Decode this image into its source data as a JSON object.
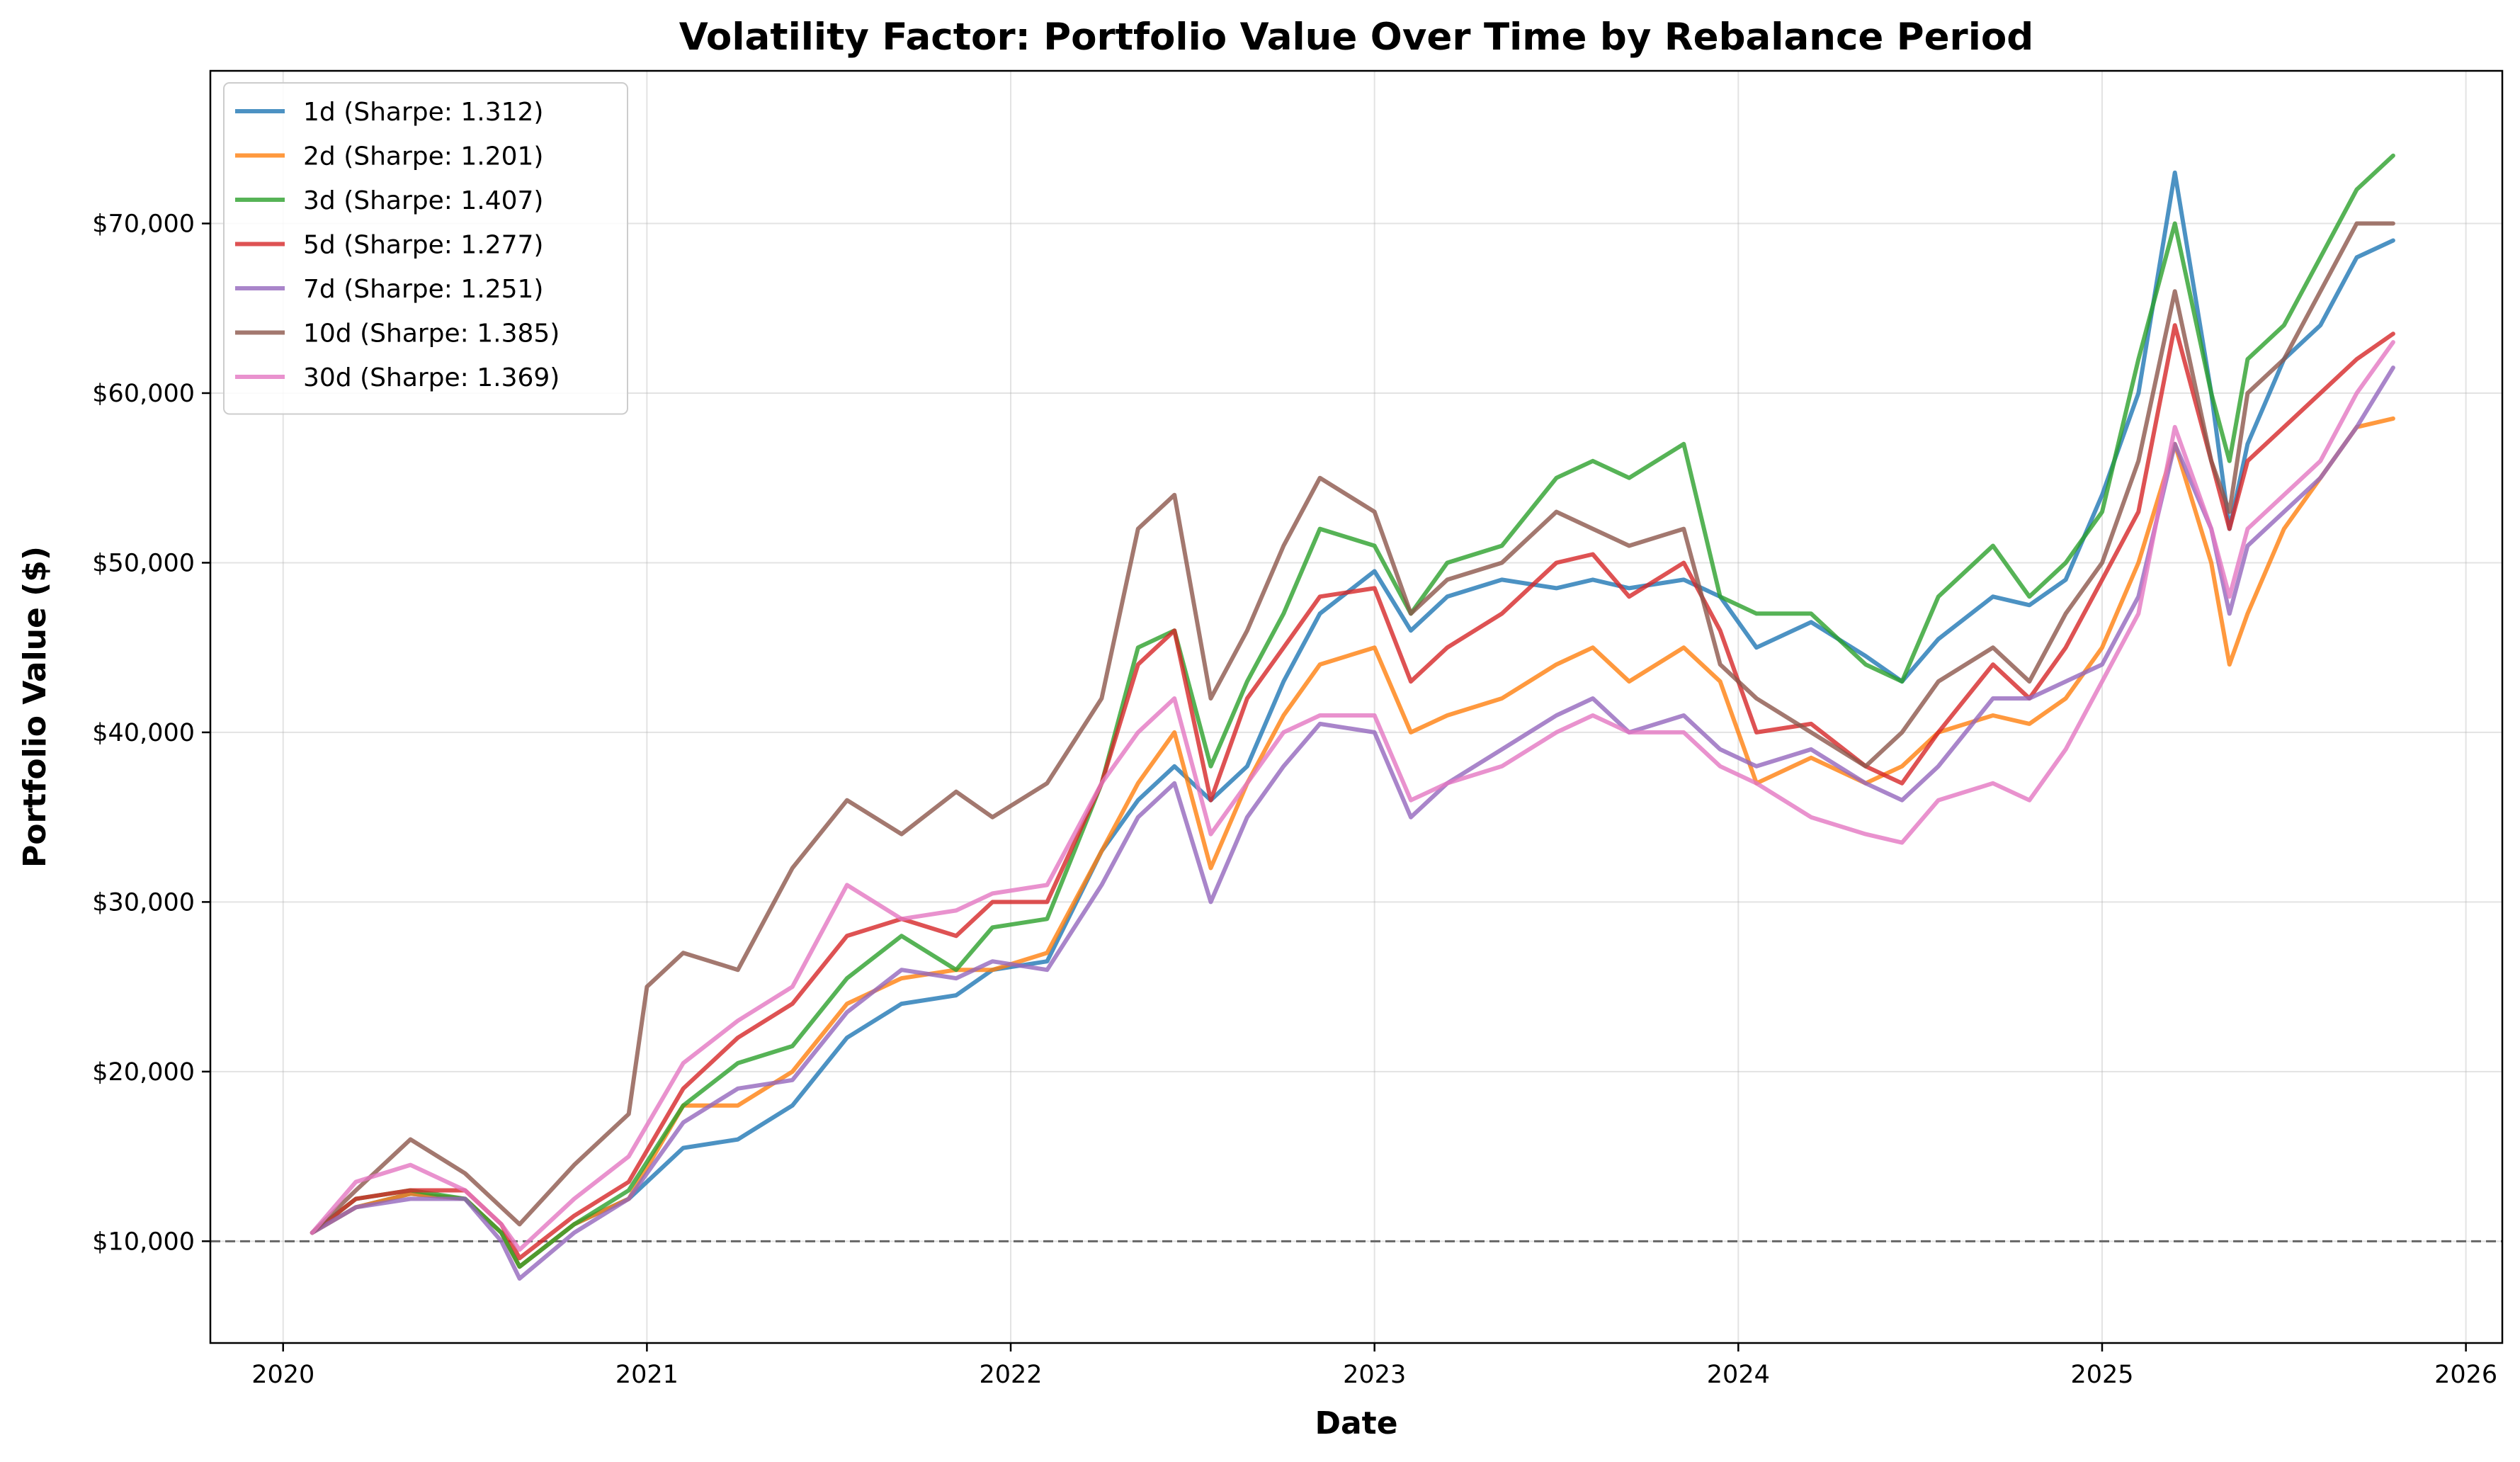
{
  "chart_data": {
    "type": "line",
    "title": "Volatility Factor: Portfolio Value Over Time by Rebalance Period",
    "xlabel": "Date",
    "ylabel": "Portfolio Value ($)",
    "xlim": [
      2019.8,
      2026.1
    ],
    "ylim": [
      4000,
      79000
    ],
    "x_ticks": [
      2020,
      2021,
      2022,
      2023,
      2024,
      2025,
      2026
    ],
    "x_tick_labels": [
      "2020",
      "2021",
      "2022",
      "2023",
      "2024",
      "2025",
      "2026"
    ],
    "y_ticks": [
      10000,
      20000,
      30000,
      40000,
      50000,
      60000,
      70000
    ],
    "y_tick_labels": [
      "$10,000",
      "$20,000",
      "$30,000",
      "$40,000",
      "$50,000",
      "$60,000",
      "$70,000"
    ],
    "grid": true,
    "legend_position": "top-left",
    "reference_line": {
      "y": 10000,
      "style": "dashed",
      "color": "#666666"
    },
    "series": [
      {
        "name": "1d (Sharpe: 1.312)",
        "color": "#1f77b4",
        "x": [
          2020.08,
          2020.2,
          2020.35,
          2020.5,
          2020.6,
          2020.65,
          2020.8,
          2020.95,
          2021.1,
          2021.25,
          2021.4,
          2021.55,
          2021.7,
          2021.85,
          2021.95,
          2022.1,
          2022.25,
          2022.35,
          2022.45,
          2022.55,
          2022.65,
          2022.75,
          2022.85,
          2023.0,
          2023.1,
          2023.2,
          2023.35,
          2023.5,
          2023.6,
          2023.7,
          2023.85,
          2023.95,
          2024.05,
          2024.2,
          2024.35,
          2024.45,
          2024.55,
          2024.7,
          2024.8,
          2024.9,
          2025.0,
          2025.1,
          2025.2,
          2025.3,
          2025.35,
          2025.4,
          2025.5,
          2025.6,
          2025.7,
          2025.8
        ],
        "values": [
          10500,
          12000,
          12800,
          12500,
          10500,
          8500,
          11000,
          12500,
          15500,
          16000,
          18000,
          22000,
          24000,
          24500,
          26000,
          26500,
          33000,
          36000,
          38000,
          36000,
          38000,
          43000,
          47000,
          49500,
          46000,
          48000,
          49000,
          48500,
          49000,
          48500,
          49000,
          48000,
          45000,
          46500,
          44500,
          43000,
          45500,
          48000,
          47500,
          49000,
          54000,
          60000,
          73000,
          60000,
          52000,
          57000,
          62000,
          64000,
          68000,
          69000
        ]
      },
      {
        "name": "2d (Sharpe: 1.201)",
        "color": "#ff7f0e",
        "x": [
          2020.08,
          2020.2,
          2020.35,
          2020.5,
          2020.6,
          2020.65,
          2020.8,
          2020.95,
          2021.1,
          2021.25,
          2021.4,
          2021.55,
          2021.7,
          2021.85,
          2021.95,
          2022.1,
          2022.25,
          2022.35,
          2022.45,
          2022.55,
          2022.65,
          2022.75,
          2022.85,
          2023.0,
          2023.1,
          2023.2,
          2023.35,
          2023.5,
          2023.6,
          2023.7,
          2023.85,
          2023.95,
          2024.05,
          2024.2,
          2024.35,
          2024.45,
          2024.55,
          2024.7,
          2024.8,
          2024.9,
          2025.0,
          2025.1,
          2025.2,
          2025.3,
          2025.35,
          2025.4,
          2025.5,
          2025.6,
          2025.7,
          2025.8
        ],
        "values": [
          10500,
          12000,
          12800,
          12500,
          10500,
          8500,
          11000,
          12500,
          18000,
          18000,
          20000,
          24000,
          25500,
          26000,
          26000,
          27000,
          33000,
          37000,
          40000,
          32000,
          37000,
          41000,
          44000,
          45000,
          40000,
          41000,
          42000,
          44000,
          45000,
          43000,
          45000,
          43000,
          37000,
          38500,
          37000,
          38000,
          40000,
          41000,
          40500,
          42000,
          45000,
          50000,
          57000,
          50000,
          44000,
          47000,
          52000,
          55000,
          58000,
          58500
        ]
      },
      {
        "name": "3d (Sharpe: 1.407)",
        "color": "#2ca02c",
        "x": [
          2020.08,
          2020.2,
          2020.35,
          2020.5,
          2020.6,
          2020.65,
          2020.8,
          2020.95,
          2021.1,
          2021.25,
          2021.4,
          2021.55,
          2021.7,
          2021.85,
          2021.95,
          2022.1,
          2022.25,
          2022.35,
          2022.45,
          2022.55,
          2022.65,
          2022.75,
          2022.85,
          2023.0,
          2023.1,
          2023.2,
          2023.35,
          2023.5,
          2023.6,
          2023.7,
          2023.85,
          2023.95,
          2024.05,
          2024.2,
          2024.35,
          2024.45,
          2024.55,
          2024.7,
          2024.8,
          2024.9,
          2025.0,
          2025.1,
          2025.2,
          2025.3,
          2025.35,
          2025.4,
          2025.5,
          2025.6,
          2025.7,
          2025.8
        ],
        "values": [
          10500,
          12500,
          13000,
          12500,
          10500,
          8500,
          11000,
          13000,
          18000,
          20500,
          21500,
          25500,
          28000,
          26000,
          28500,
          29000,
          37000,
          45000,
          46000,
          38000,
          43000,
          47000,
          52000,
          51000,
          47000,
          50000,
          51000,
          55000,
          56000,
          55000,
          57000,
          48000,
          47000,
          47000,
          44000,
          43000,
          48000,
          51000,
          48000,
          50000,
          53000,
          62000,
          70000,
          60000,
          56000,
          62000,
          64000,
          68000,
          72000,
          74000
        ]
      },
      {
        "name": "5d (Sharpe: 1.277)",
        "color": "#d62728",
        "x": [
          2020.08,
          2020.2,
          2020.35,
          2020.5,
          2020.6,
          2020.65,
          2020.8,
          2020.95,
          2021.1,
          2021.25,
          2021.4,
          2021.55,
          2021.7,
          2021.85,
          2021.95,
          2022.1,
          2022.25,
          2022.35,
          2022.45,
          2022.55,
          2022.65,
          2022.75,
          2022.85,
          2023.0,
          2023.1,
          2023.2,
          2023.35,
          2023.5,
          2023.6,
          2023.7,
          2023.85,
          2023.95,
          2024.05,
          2024.2,
          2024.35,
          2024.45,
          2024.55,
          2024.7,
          2024.8,
          2024.9,
          2025.0,
          2025.1,
          2025.2,
          2025.3,
          2025.35,
          2025.4,
          2025.5,
          2025.6,
          2025.7,
          2025.8
        ],
        "values": [
          10500,
          12500,
          13000,
          13000,
          11000,
          9000,
          11500,
          13500,
          19000,
          22000,
          24000,
          28000,
          29000,
          28000,
          30000,
          30000,
          37000,
          44000,
          46000,
          36000,
          42000,
          45000,
          48000,
          48500,
          43000,
          45000,
          47000,
          50000,
          50500,
          48000,
          50000,
          46000,
          40000,
          40500,
          38000,
          37000,
          40000,
          44000,
          42000,
          45000,
          49000,
          53000,
          64000,
          56000,
          52000,
          56000,
          58000,
          60000,
          62000,
          63500
        ]
      },
      {
        "name": "7d (Sharpe: 1.251)",
        "color": "#9467bd",
        "x": [
          2020.08,
          2020.2,
          2020.35,
          2020.5,
          2020.6,
          2020.65,
          2020.8,
          2020.95,
          2021.1,
          2021.25,
          2021.4,
          2021.55,
          2021.7,
          2021.85,
          2021.95,
          2022.1,
          2022.25,
          2022.35,
          2022.45,
          2022.55,
          2022.65,
          2022.75,
          2022.85,
          2023.0,
          2023.1,
          2023.2,
          2023.35,
          2023.5,
          2023.6,
          2023.7,
          2023.85,
          2023.95,
          2024.05,
          2024.2,
          2024.35,
          2024.45,
          2024.55,
          2024.7,
          2024.8,
          2024.9,
          2025.0,
          2025.1,
          2025.2,
          2025.3,
          2025.35,
          2025.4,
          2025.5,
          2025.6,
          2025.7,
          2025.8
        ],
        "values": [
          10500,
          12000,
          12500,
          12500,
          10000,
          7800,
          10500,
          12500,
          17000,
          19000,
          19500,
          23500,
          26000,
          25500,
          26500,
          26000,
          31000,
          35000,
          37000,
          30000,
          35000,
          38000,
          40500,
          40000,
          35000,
          37000,
          39000,
          41000,
          42000,
          40000,
          41000,
          39000,
          38000,
          39000,
          37000,
          36000,
          38000,
          42000,
          42000,
          43000,
          44000,
          48000,
          57000,
          52000,
          47000,
          51000,
          53000,
          55000,
          58000,
          61500
        ]
      },
      {
        "name": "10d (Sharpe: 1.385)",
        "color": "#8c564b",
        "x": [
          2020.08,
          2020.2,
          2020.35,
          2020.5,
          2020.6,
          2020.65,
          2020.8,
          2020.95,
          2021.0,
          2021.1,
          2021.25,
          2021.4,
          2021.55,
          2021.7,
          2021.85,
          2021.95,
          2022.1,
          2022.25,
          2022.35,
          2022.45,
          2022.55,
          2022.65,
          2022.75,
          2022.85,
          2023.0,
          2023.1,
          2023.2,
          2023.35,
          2023.5,
          2023.6,
          2023.7,
          2023.85,
          2023.95,
          2024.05,
          2024.2,
          2024.35,
          2024.45,
          2024.55,
          2024.7,
          2024.8,
          2024.9,
          2025.0,
          2025.1,
          2025.2,
          2025.3,
          2025.35,
          2025.4,
          2025.5,
          2025.6,
          2025.7,
          2025.8
        ],
        "values": [
          10500,
          13000,
          16000,
          14000,
          12000,
          11000,
          14500,
          17500,
          25000,
          27000,
          26000,
          32000,
          36000,
          34000,
          36500,
          35000,
          37000,
          42000,
          52000,
          54000,
          42000,
          46000,
          51000,
          55000,
          53000,
          47000,
          49000,
          50000,
          53000,
          52000,
          51000,
          52000,
          44000,
          42000,
          40000,
          38000,
          40000,
          43000,
          45000,
          43000,
          47000,
          50000,
          56000,
          66000,
          56000,
          53000,
          60000,
          62000,
          66000,
          70000,
          70000
        ]
      },
      {
        "name": "30d (Sharpe: 1.369)",
        "color": "#e377c2",
        "x": [
          2020.08,
          2020.2,
          2020.35,
          2020.5,
          2020.6,
          2020.65,
          2020.8,
          2020.95,
          2021.1,
          2021.25,
          2021.4,
          2021.55,
          2021.7,
          2021.85,
          2021.95,
          2022.1,
          2022.25,
          2022.35,
          2022.45,
          2022.55,
          2022.65,
          2022.75,
          2022.85,
          2023.0,
          2023.1,
          2023.2,
          2023.35,
          2023.5,
          2023.6,
          2023.7,
          2023.85,
          2023.95,
          2024.05,
          2024.2,
          2024.35,
          2024.45,
          2024.55,
          2024.7,
          2024.8,
          2024.9,
          2025.0,
          2025.1,
          2025.2,
          2025.3,
          2025.35,
          2025.4,
          2025.5,
          2025.6,
          2025.7,
          2025.8
        ],
        "values": [
          10500,
          13500,
          14500,
          13000,
          11000,
          9500,
          12500,
          15000,
          20500,
          23000,
          25000,
          31000,
          29000,
          29500,
          30500,
          31000,
          37000,
          40000,
          42000,
          34000,
          37000,
          40000,
          41000,
          41000,
          36000,
          37000,
          38000,
          40000,
          41000,
          40000,
          40000,
          38000,
          37000,
          35000,
          34000,
          33500,
          36000,
          37000,
          36000,
          39000,
          43000,
          47000,
          58000,
          52000,
          48000,
          52000,
          54000,
          56000,
          60000,
          63000
        ]
      }
    ]
  }
}
